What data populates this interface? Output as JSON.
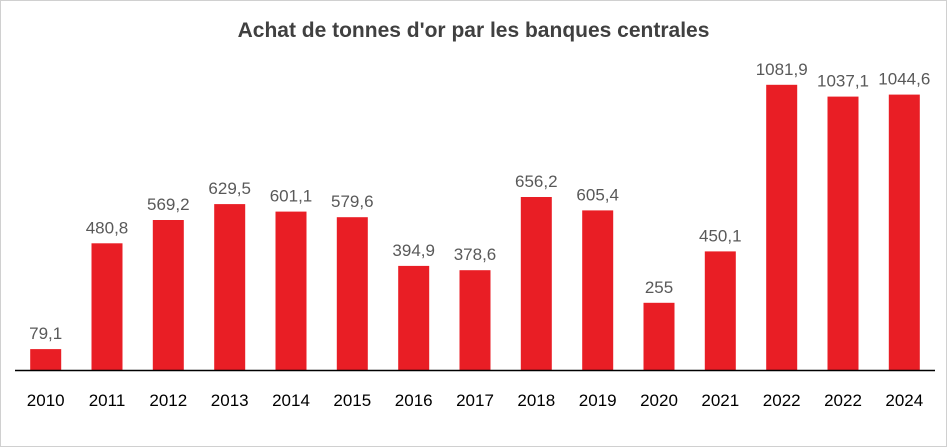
{
  "chart_data": {
    "type": "bar",
    "title": "Achat de tonnes d'or par les banques centrales",
    "xlabel": "",
    "ylabel": "",
    "categories": [
      "2010",
      "2011",
      "2012",
      "2013",
      "2014",
      "2015",
      "2016",
      "2017",
      "2018",
      "2019",
      "2020",
      "2021",
      "2022",
      "2022",
      "2024"
    ],
    "values": [
      79.1,
      480.8,
      569.2,
      629.5,
      601.1,
      579.6,
      394.9,
      378.6,
      656.2,
      605.4,
      255,
      450.1,
      1081.9,
      1037.1,
      1044.6
    ],
    "data_labels": [
      "79,1",
      "480,8",
      "569,2",
      "629,5",
      "601,1",
      "579,6",
      "394,9",
      "378,6",
      "656,2",
      "605,4",
      "255",
      "450,1",
      "1081,9",
      "1037,1",
      "1044,6"
    ],
    "ylim": [
      0,
      1200
    ],
    "grid": false,
    "legend": "none",
    "bar_color": "#e91e25"
  }
}
